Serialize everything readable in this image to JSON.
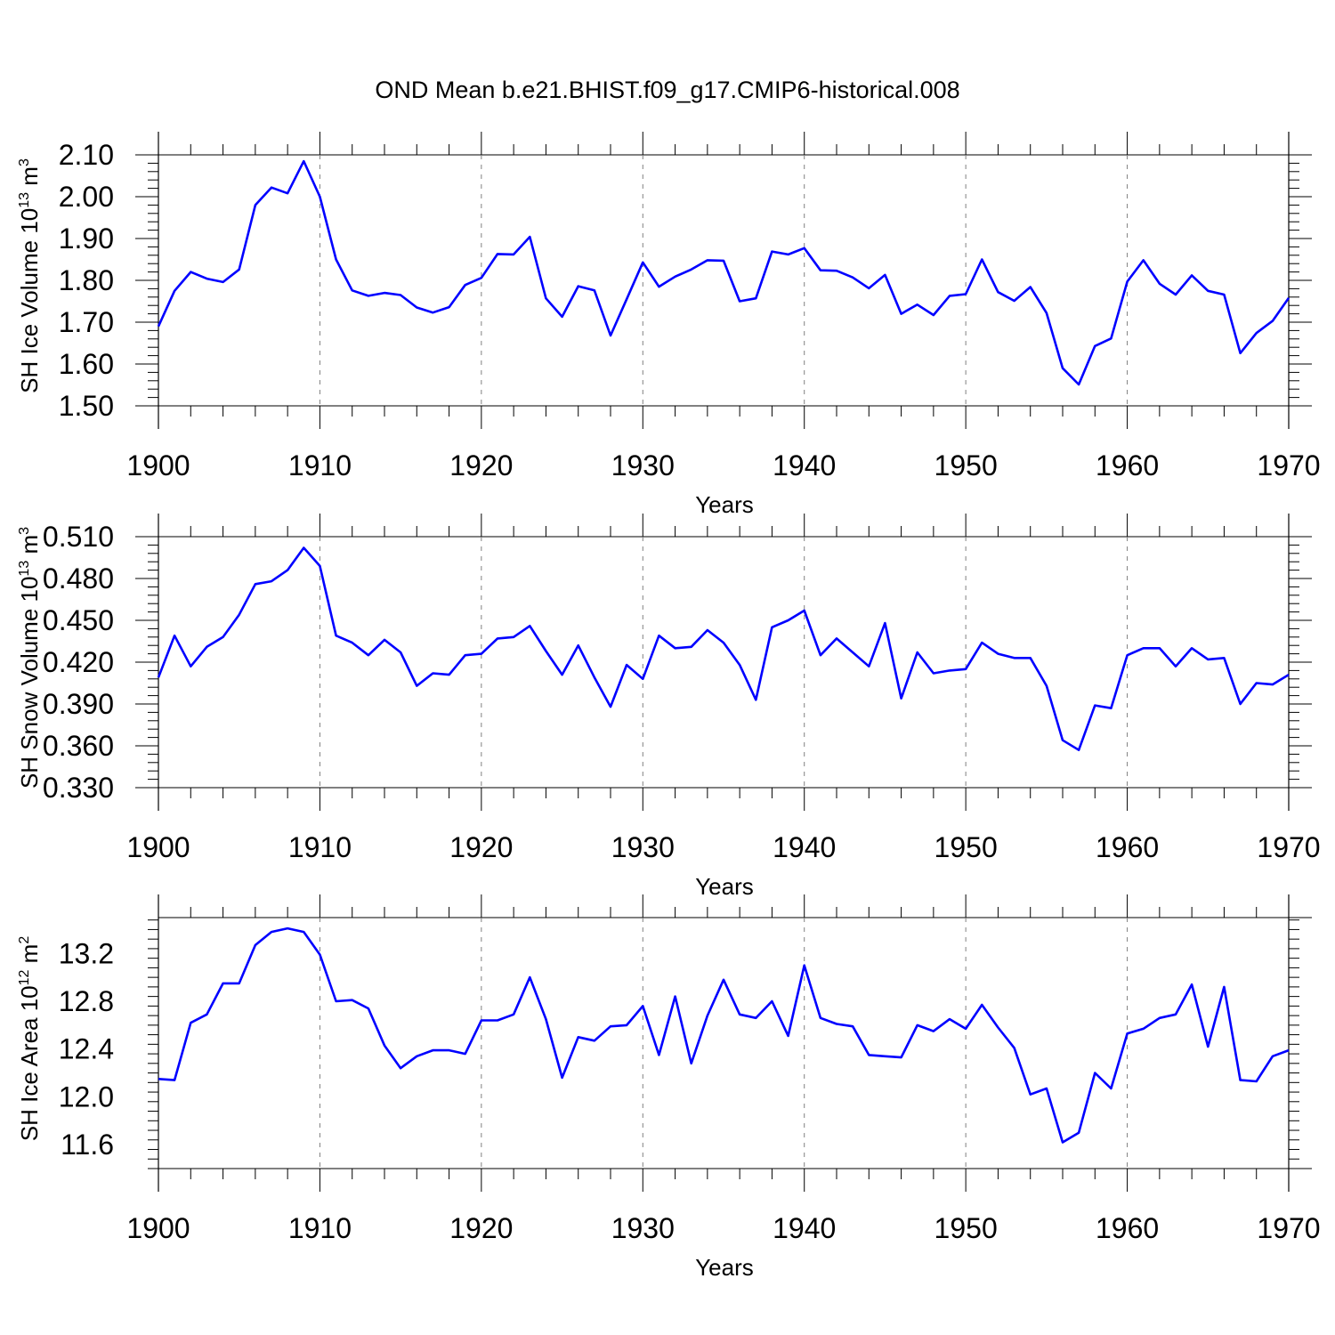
{
  "title": "OND Mean b.e21.BHIST.f09_g17.CMIP6-historical.008",
  "line_color": "#0000ff",
  "grid_color": "#808080",
  "chart_data": [
    {
      "type": "line",
      "ylabel": {
        "prefix": "SH Ice Volume 10",
        "sup1": "13",
        "mid": " m",
        "sup2": "3"
      },
      "xlabel": "Years",
      "xlim": [
        1900,
        1970
      ],
      "ylim": [
        1.5,
        2.1
      ],
      "x_ticks": [
        "1900",
        "1910",
        "1920",
        "1930",
        "1940",
        "1950",
        "1960",
        "1970"
      ],
      "y_ticks": [
        "1.50",
        "1.60",
        "1.70",
        "1.80",
        "1.90",
        "2.00",
        "2.10"
      ],
      "x_grid": "dashed vertical at 1910-1960",
      "x": [
        1900,
        1901,
        1902,
        1903,
        1904,
        1905,
        1906,
        1907,
        1908,
        1909,
        1910,
        1911,
        1912,
        1913,
        1914,
        1915,
        1916,
        1917,
        1918,
        1919,
        1920,
        1921,
        1922,
        1923,
        1924,
        1925,
        1926,
        1927,
        1928,
        1929,
        1930,
        1931,
        1932,
        1933,
        1934,
        1935,
        1936,
        1937,
        1938,
        1939,
        1940,
        1941,
        1942,
        1943,
        1944,
        1945,
        1946,
        1947,
        1948,
        1949,
        1950,
        1951,
        1952,
        1953,
        1954,
        1955,
        1956,
        1957,
        1958,
        1959,
        1960,
        1961,
        1962,
        1963,
        1964,
        1965,
        1966,
        1967,
        1968,
        1969,
        1970
      ],
      "values": [
        1.69,
        1.775,
        1.82,
        1.804,
        1.796,
        1.826,
        1.98,
        2.022,
        2.008,
        2.085,
        2.0,
        1.85,
        1.776,
        1.763,
        1.77,
        1.765,
        1.735,
        1.723,
        1.736,
        1.789,
        1.806,
        1.863,
        1.862,
        1.904,
        1.757,
        1.713,
        1.786,
        1.776,
        1.668,
        1.755,
        1.843,
        1.785,
        1.809,
        1.826,
        1.848,
        1.847,
        1.75,
        1.757,
        1.869,
        1.862,
        1.877,
        1.824,
        1.823,
        1.807,
        1.781,
        1.813,
        1.72,
        1.742,
        1.717,
        1.763,
        1.767,
        1.85,
        1.772,
        1.751,
        1.784,
        1.722,
        1.59,
        1.551,
        1.643,
        1.661,
        1.797,
        1.848,
        1.792,
        1.766,
        1.812,
        1.775,
        1.766,
        1.626,
        1.674,
        1.703,
        1.758
      ]
    },
    {
      "type": "line",
      "ylabel": {
        "prefix": "SH Snow Volume 10",
        "sup1": "13",
        "mid": " m",
        "sup2": "3"
      },
      "xlabel": "Years",
      "xlim": [
        1900,
        1970
      ],
      "ylim": [
        0.33,
        0.51
      ],
      "x_ticks": [
        "1900",
        "1910",
        "1920",
        "1930",
        "1940",
        "1950",
        "1960",
        "1970"
      ],
      "y_ticks": [
        "0.330",
        "0.360",
        "0.390",
        "0.420",
        "0.450",
        "0.480",
        "0.510"
      ],
      "x_grid": "dashed vertical at 1910-1960",
      "x": [
        1900,
        1901,
        1902,
        1903,
        1904,
        1905,
        1906,
        1907,
        1908,
        1909,
        1910,
        1911,
        1912,
        1913,
        1914,
        1915,
        1916,
        1917,
        1918,
        1919,
        1920,
        1921,
        1922,
        1923,
        1924,
        1925,
        1926,
        1927,
        1928,
        1929,
        1930,
        1931,
        1932,
        1933,
        1934,
        1935,
        1936,
        1937,
        1938,
        1939,
        1940,
        1941,
        1942,
        1943,
        1944,
        1945,
        1946,
        1947,
        1948,
        1949,
        1950,
        1951,
        1952,
        1953,
        1954,
        1955,
        1956,
        1957,
        1958,
        1959,
        1960,
        1961,
        1962,
        1963,
        1964,
        1965,
        1966,
        1967,
        1968,
        1969,
        1970
      ],
      "values": [
        0.409,
        0.439,
        0.417,
        0.431,
        0.438,
        0.454,
        0.476,
        0.478,
        0.486,
        0.502,
        0.489,
        0.439,
        0.434,
        0.425,
        0.436,
        0.427,
        0.403,
        0.412,
        0.411,
        0.425,
        0.426,
        0.437,
        0.438,
        0.446,
        0.428,
        0.411,
        0.432,
        0.409,
        0.388,
        0.418,
        0.408,
        0.439,
        0.43,
        0.431,
        0.443,
        0.434,
        0.418,
        0.393,
        0.445,
        0.45,
        0.457,
        0.425,
        0.437,
        0.427,
        0.417,
        0.448,
        0.394,
        0.427,
        0.412,
        0.414,
        0.415,
        0.434,
        0.426,
        0.423,
        0.423,
        0.403,
        0.364,
        0.357,
        0.389,
        0.387,
        0.425,
        0.43,
        0.43,
        0.417,
        0.43,
        0.422,
        0.423,
        0.39,
        0.405,
        0.404,
        0.411
      ]
    },
    {
      "type": "line",
      "ylabel": {
        "prefix": "SH Ice Area 10",
        "sup1": "12",
        "mid": " m",
        "sup2": "2"
      },
      "xlabel": "Years",
      "xlim": [
        1900,
        1970
      ],
      "ylim": [
        11.4,
        13.5
      ],
      "y_tick_values": [
        11.6,
        12.0,
        12.4,
        12.8,
        13.2
      ],
      "x_ticks": [
        "1900",
        "1910",
        "1920",
        "1930",
        "1940",
        "1950",
        "1960",
        "1970"
      ],
      "y_ticks": [
        "11.6",
        "12.0",
        "12.4",
        "12.8",
        "13.2"
      ],
      "x_grid": "dashed vertical at 1910-1960",
      "x": [
        1900,
        1901,
        1902,
        1903,
        1904,
        1905,
        1906,
        1907,
        1908,
        1909,
        1910,
        1911,
        1912,
        1913,
        1914,
        1915,
        1916,
        1917,
        1918,
        1919,
        1920,
        1921,
        1922,
        1923,
        1924,
        1925,
        1926,
        1927,
        1928,
        1929,
        1930,
        1931,
        1932,
        1933,
        1934,
        1935,
        1936,
        1937,
        1938,
        1939,
        1940,
        1941,
        1942,
        1943,
        1944,
        1945,
        1946,
        1947,
        1948,
        1949,
        1950,
        1951,
        1952,
        1953,
        1954,
        1955,
        1956,
        1957,
        1958,
        1959,
        1960,
        1961,
        1962,
        1963,
        1964,
        1965,
        1966,
        1967,
        1968,
        1969,
        1970
      ],
      "values": [
        12.15,
        12.14,
        12.62,
        12.69,
        12.95,
        12.95,
        13.27,
        13.38,
        13.41,
        13.38,
        13.19,
        12.8,
        12.81,
        12.74,
        12.43,
        12.24,
        12.34,
        12.39,
        12.39,
        12.36,
        12.64,
        12.64,
        12.69,
        13.0,
        12.65,
        12.16,
        12.5,
        12.47,
        12.59,
        12.6,
        12.76,
        12.35,
        12.84,
        12.28,
        12.68,
        12.98,
        12.69,
        12.66,
        12.8,
        12.51,
        13.1,
        12.66,
        12.61,
        12.59,
        12.35,
        12.34,
        12.33,
        12.6,
        12.55,
        12.65,
        12.57,
        12.77,
        12.58,
        12.41,
        12.02,
        12.07,
        11.62,
        11.7,
        12.2,
        12.07,
        12.53,
        12.57,
        12.66,
        12.69,
        12.94,
        12.42,
        12.92,
        12.14,
        12.13,
        12.34,
        12.39
      ]
    }
  ]
}
